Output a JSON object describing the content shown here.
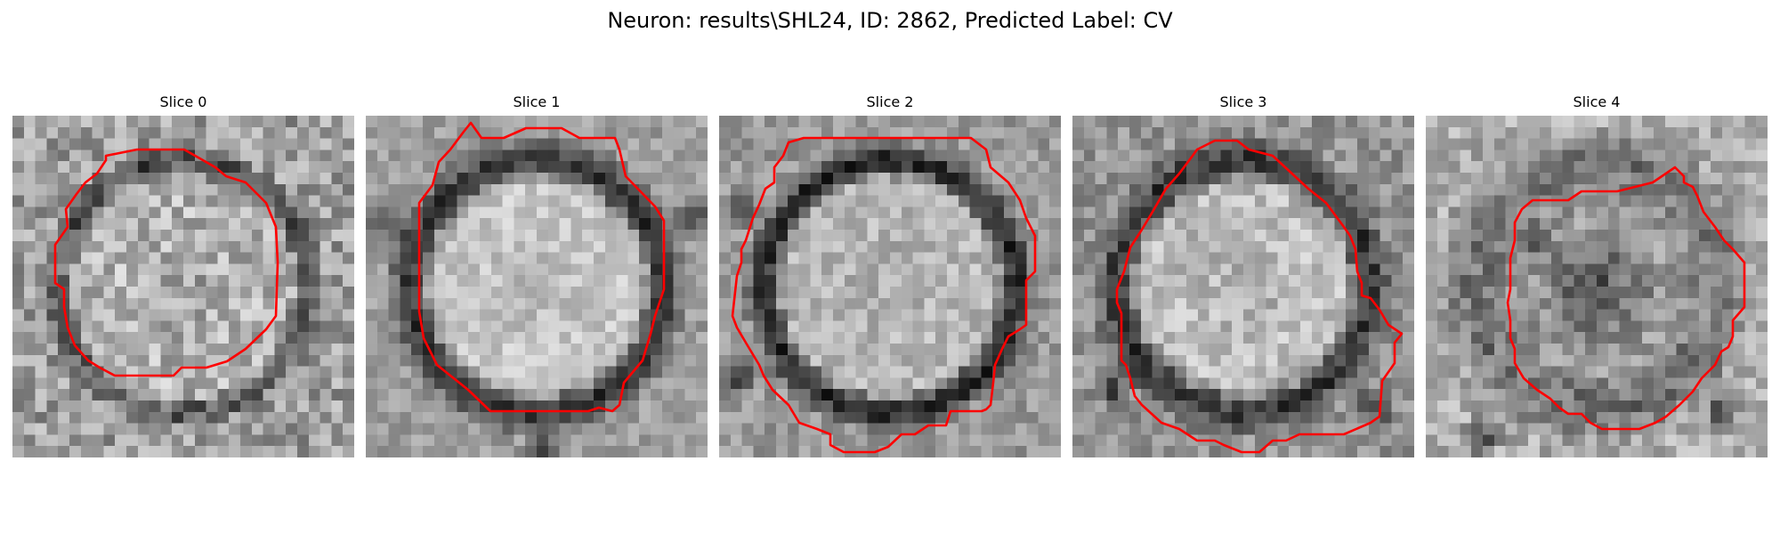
{
  "figure": {
    "title": "Neuron: results\\SHL24, ID: 2862, Predicted Label: CV"
  },
  "colors": {
    "contour": "#ff0000",
    "background": "#ffffff"
  },
  "slices": [
    {
      "label": "Slice 0"
    },
    {
      "label": "Slice 1"
    },
    {
      "label": "Slice 2"
    },
    {
      "label": "Slice 3"
    },
    {
      "label": "Slice 4"
    }
  ]
}
